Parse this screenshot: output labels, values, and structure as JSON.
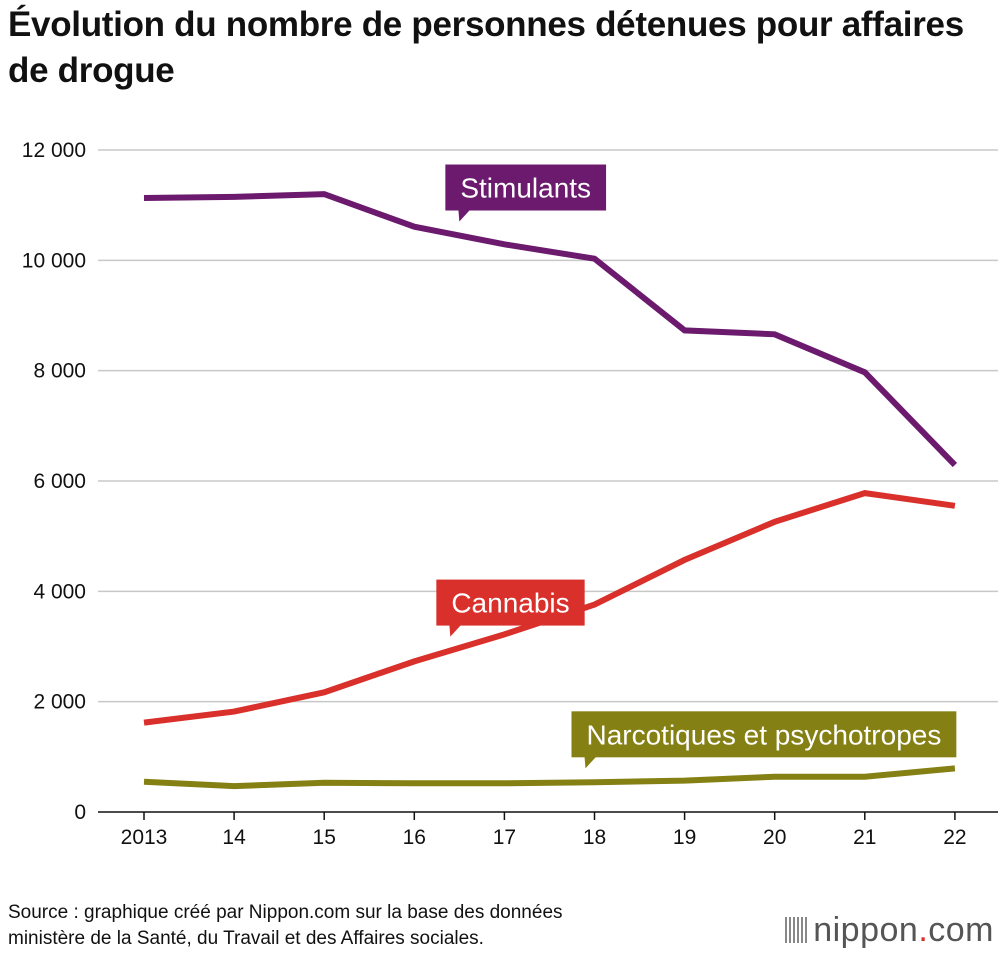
{
  "title": "Évolution du nombre de personnes détenues pour affaires de drogue",
  "source": [
    "Source : graphique créé par Nippon.com sur la base des données",
    "ministère de la Santé, du Travail et des Affaires sociales."
  ],
  "logo": {
    "name": "nippon",
    "dot": ".",
    "suffix": "com"
  },
  "colors": {
    "stimulants": "#6b1a6e",
    "cannabis": "#d9302b",
    "narcotiques": "#858014",
    "grid": "#c8c8c8"
  },
  "chart_data": {
    "type": "line",
    "title": "Évolution du nombre de personnes détenues pour affaires de drogue",
    "categories": [
      "2013",
      "14",
      "15",
      "16",
      "17",
      "18",
      "19",
      "20",
      "21",
      "22"
    ],
    "ylim": [
      0,
      12000
    ],
    "yticks": [
      0,
      2000,
      4000,
      6000,
      8000,
      10000,
      12000
    ],
    "ytick_labels": [
      "0",
      "2 000",
      "4 000",
      "6 000",
      "8 000",
      "10 000",
      "12 000"
    ],
    "series": [
      {
        "key": "stimulants",
        "name": "Stimulants",
        "values": [
          11130,
          11150,
          11200,
          10610,
          10290,
          10030,
          8730,
          8660,
          7970,
          6290
        ],
        "label_anchor": 3.5
      },
      {
        "key": "cannabis",
        "name": "Cannabis",
        "values": [
          1620,
          1820,
          2170,
          2730,
          3220,
          3760,
          4570,
          5260,
          5780,
          5550
        ],
        "label_anchor": 3.4
      },
      {
        "key": "narcotiques",
        "name": "Narcotiques et psychotropes",
        "values": [
          550,
          470,
          530,
          520,
          520,
          540,
          570,
          640,
          640,
          790
        ],
        "label_anchor": 4.9
      }
    ]
  }
}
